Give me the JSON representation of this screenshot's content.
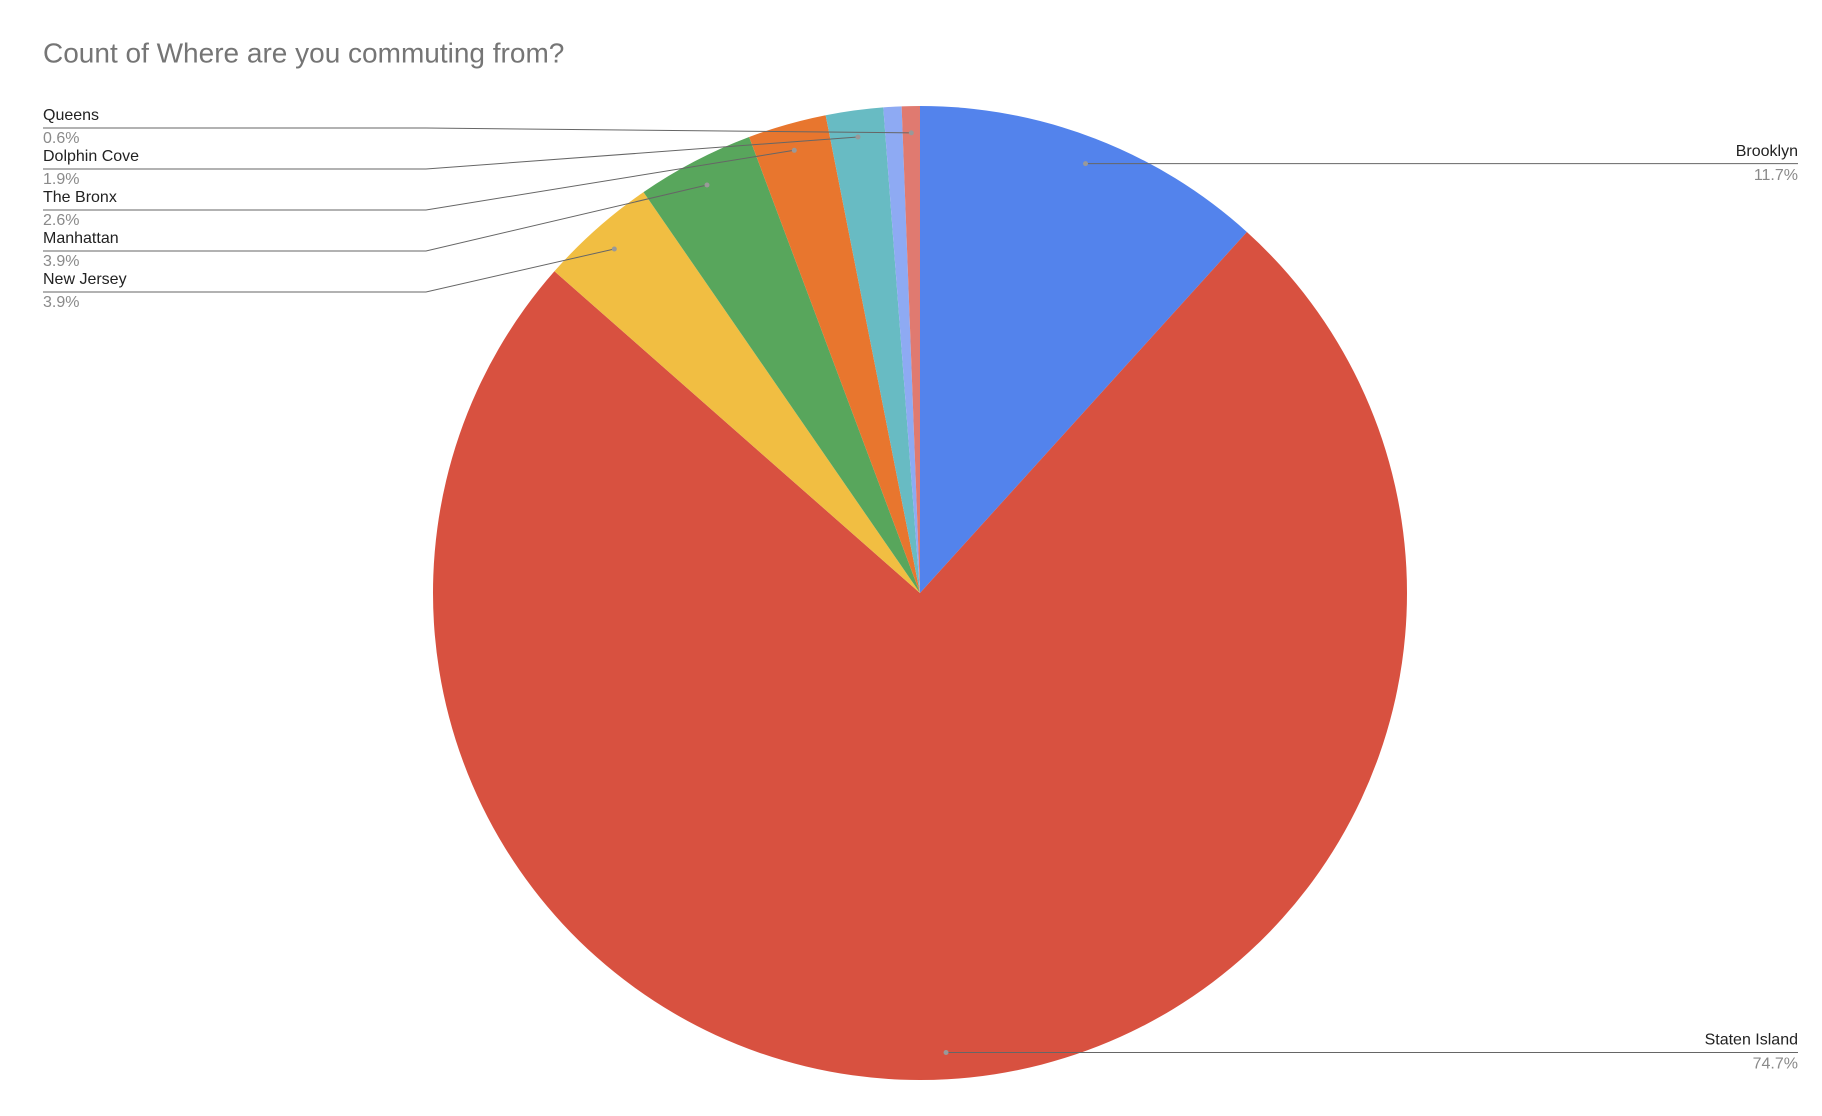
{
  "chart_data": {
    "type": "pie",
    "title": "Count of Where are you commuting from?",
    "categories": [
      "Brooklyn",
      "Staten Island",
      "New Jersey",
      "Manhattan",
      "The Bronx",
      "Dolphin Cove",
      null,
      "Queens"
    ],
    "values": [
      11.7,
      74.7,
      3.9,
      3.9,
      2.6,
      1.9,
      0.6,
      0.6
    ],
    "value_labels": [
      "11.7%",
      "74.7%",
      "3.9%",
      "3.9%",
      "2.6%",
      "1.9%",
      null,
      "0.6%"
    ],
    "colors": [
      "#5383ec",
      "#d85140",
      "#f1be42",
      "#58a65c",
      "#e8762e",
      "#68bbc3",
      "#8eaaf3",
      "#e07a70"
    ]
  }
}
